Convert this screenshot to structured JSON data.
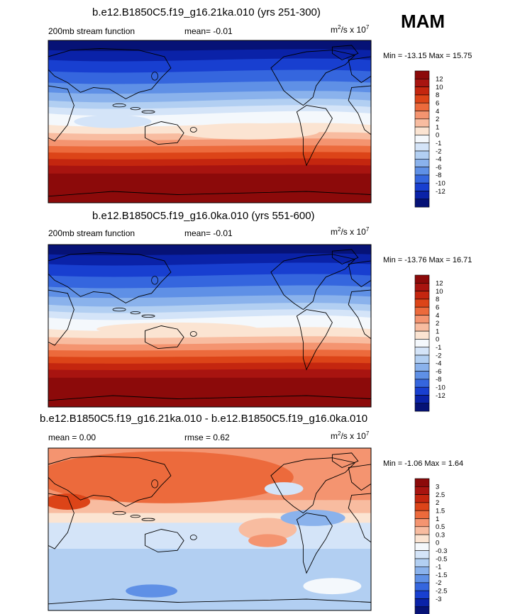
{
  "season": "MAM",
  "chart_data": [
    {
      "type": "heatmap",
      "title": "b.e12.B1850C5.f19_g16.21ka.010 (yrs 251-300)",
      "variable": "200mb stream function",
      "mean_text": "mean=  -0.01",
      "units_text": "m",
      "units_exp": "2",
      "units_rest": "/s x 10",
      "units_pow": "7",
      "min_max": "Min = -13.15 Max =  15.75",
      "levels": [
        "12",
        "10",
        "8",
        "6",
        "4",
        "2",
        "1",
        "0",
        "-1",
        "-2",
        "-4",
        "-6",
        "-8",
        "-10",
        "-12"
      ],
      "colors": [
        "#8c0a0a",
        "#a81410",
        "#c4260f",
        "#dc4418",
        "#ec6a3c",
        "#f49470",
        "#f8bca0",
        "#fbe4d2",
        "#f4f8fc",
        "#d4e4f8",
        "#b2cff2",
        "#8ab2ec",
        "#5f90e6",
        "#3566de",
        "#183fd0",
        "#0a22a8",
        "#061276"
      ]
    },
    {
      "type": "heatmap",
      "title": "b.e12.B1850C5.f19_g16.0ka.010 (yrs 551-600)",
      "variable": "200mb stream function",
      "mean_text": "mean=  -0.01",
      "units_text": "m",
      "units_exp": "2",
      "units_rest": "/s x 10",
      "units_pow": "7",
      "min_max": "Min = -13.76 Max =  16.71",
      "levels": [
        "12",
        "10",
        "8",
        "6",
        "4",
        "2",
        "1",
        "0",
        "-1",
        "-2",
        "-4",
        "-6",
        "-8",
        "-10",
        "-12"
      ],
      "colors": [
        "#8c0a0a",
        "#a81410",
        "#c4260f",
        "#dc4418",
        "#ec6a3c",
        "#f49470",
        "#f8bca0",
        "#fbe4d2",
        "#f4f8fc",
        "#d4e4f8",
        "#b2cff2",
        "#8ab2ec",
        "#5f90e6",
        "#3566de",
        "#183fd0",
        "#0a22a8",
        "#061276"
      ]
    },
    {
      "type": "heatmap",
      "title": "b.e12.B1850C5.f19_g16.21ka.010 - b.e12.B1850C5.f19_g16.0ka.010",
      "mean_text": "mean =   0.00",
      "rmse_text": "rmse =   0.62",
      "units_text": "m",
      "units_exp": "2",
      "units_rest": "/s x 10",
      "units_pow": "7",
      "min_max": "Min =  -1.06 Max =   1.64",
      "levels": [
        "3",
        "2.5",
        "2",
        "1.5",
        "1",
        "0.5",
        "0.3",
        "0",
        "-0.3",
        "-0.5",
        "-1",
        "-1.5",
        "-2",
        "-2.5",
        "-3"
      ],
      "colors": [
        "#8c0a0a",
        "#a81410",
        "#c4260f",
        "#dc4418",
        "#ec6a3c",
        "#f49470",
        "#f8bca0",
        "#fbe4d2",
        "#f4f8fc",
        "#d4e4f8",
        "#b2cff2",
        "#8ab2ec",
        "#5f90e6",
        "#3566de",
        "#183fd0",
        "#0a22a8",
        "#061276"
      ]
    }
  ]
}
